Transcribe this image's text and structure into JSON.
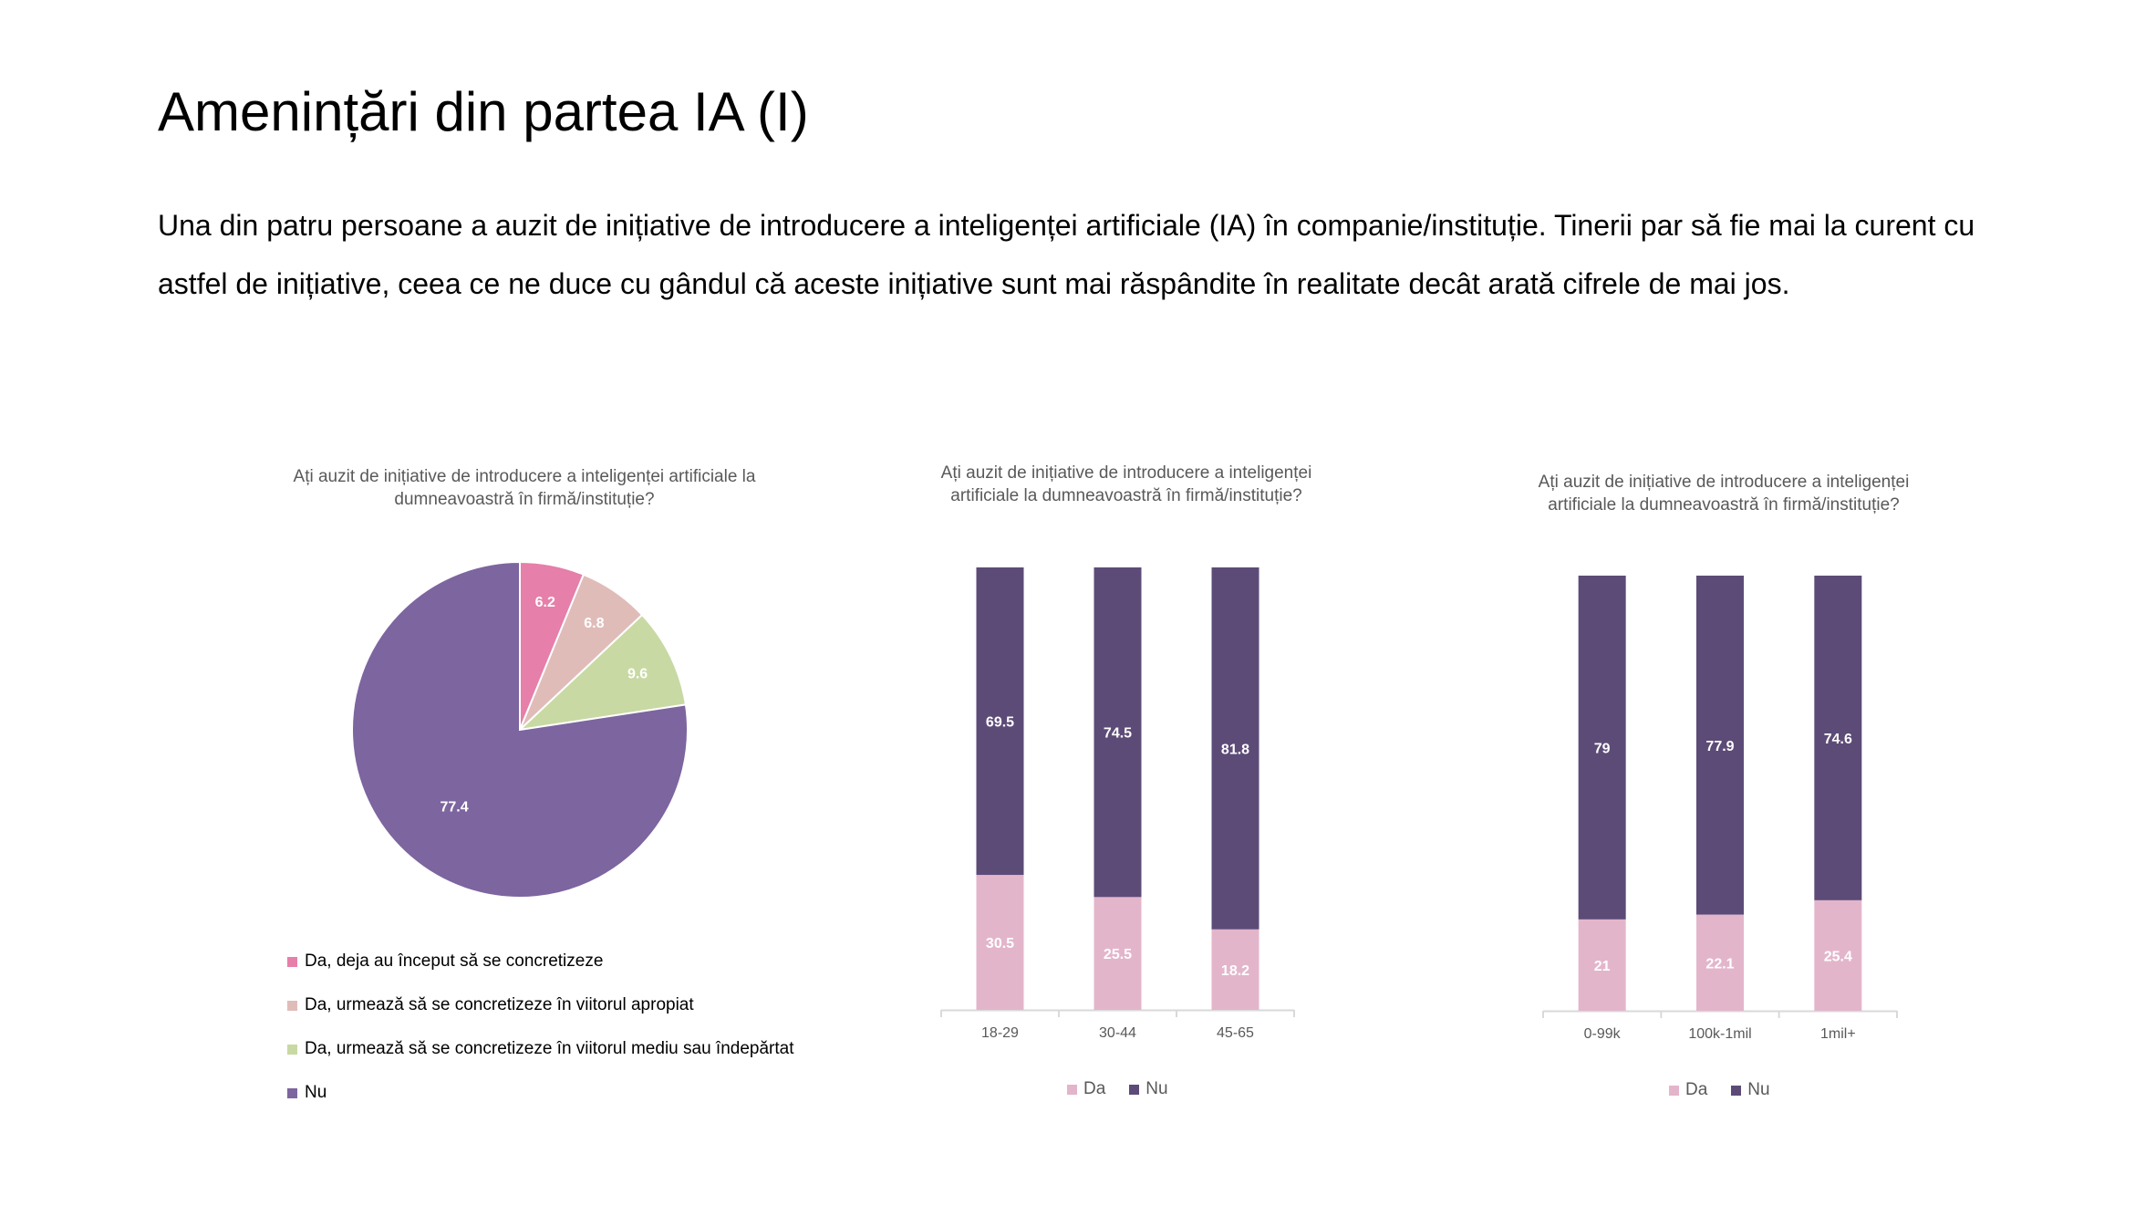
{
  "slide": {
    "title": "Amenințări din partea IA (I)",
    "body": "Una din patru persoane a auzit de inițiative de introducere a inteligenței artificiale (IA) în companie/instituție. Tinerii par să fie mai la curent cu astfel de inițiative, ceea ce ne duce cu gândul că aceste inițiative sunt mai răspândite în realitate decât arată cifrele de mai jos."
  },
  "colors": {
    "pie": [
      "#e67fa9",
      "#e0bcb9",
      "#c8d9a3",
      "#7d659f"
    ],
    "da": "#e3b5cb",
    "nu": "#5c4b77"
  },
  "chart_data": [
    {
      "type": "pie",
      "title": "Ați auzit de inițiative de introducere a inteligenței artificiale la dumneavoastră în firmă/instituție?",
      "labels": [
        "Da, deja au început să se concretizeze",
        "Da, urmează să se concretizeze în viitorul apropiat",
        "Da, urmează să se concretizeze în viitorul mediu sau îndepărtat",
        "Nu"
      ],
      "values": [
        6.2,
        6.8,
        9.6,
        77.4
      ],
      "legend": "bottom-left"
    },
    {
      "type": "bar",
      "stacked": true,
      "title": "Ați auzit de inițiative de introducere a inteligenței artificiale la dumneavoastră în firmă/instituție?",
      "categories": [
        "18-29",
        "30-44",
        "45-65"
      ],
      "series": [
        {
          "name": "Da",
          "values": [
            30.5,
            25.5,
            18.2
          ]
        },
        {
          "name": "Nu",
          "values": [
            69.5,
            74.5,
            81.8
          ]
        }
      ],
      "ylim": [
        0,
        100
      ],
      "legend": "bottom"
    },
    {
      "type": "bar",
      "stacked": true,
      "title": "Ați auzit de inițiative de introducere a inteligenței artificiale la dumneavoastră în firmă/instituție?",
      "categories": [
        "0-99k",
        "100k-1mil",
        "1mil+"
      ],
      "series": [
        {
          "name": "Da",
          "values": [
            21,
            22.1,
            25.4
          ]
        },
        {
          "name": "Nu",
          "values": [
            79,
            77.9,
            74.6
          ]
        }
      ],
      "ylim": [
        0,
        100
      ],
      "legend": "bottom"
    }
  ]
}
